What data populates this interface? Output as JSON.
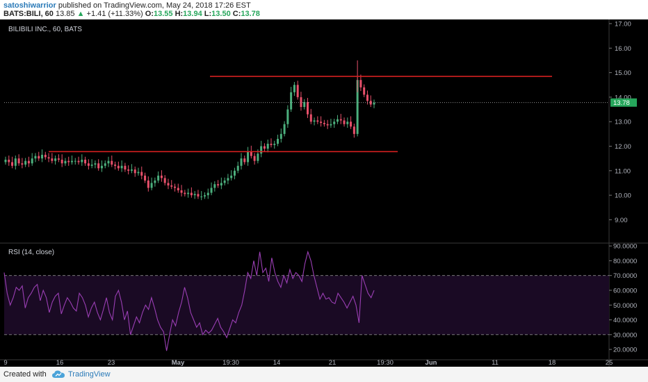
{
  "header": {
    "author": "satoshiwarrior",
    "published_text": "published on TradingView.com, May 24, 2018 17:26 EST",
    "symbol_interval": "BATS:BILI, 60",
    "last_price": "13.85",
    "change_arrow": "▲",
    "change_text": "+1.41 (+11.33%)",
    "open_label": "O:",
    "open_value": "13.55",
    "high_label": "H:",
    "high_value": "13.94",
    "low_label": "L:",
    "low_value": "13.50",
    "close_label": "C:",
    "close_value": "13.78"
  },
  "colors": {
    "background": "#000000",
    "up_candle": "#4caf7d",
    "down_candle": "#e8506b",
    "horizontal_line": "#d42020",
    "rsi_line": "#9b3fb5",
    "rsi_band": "#1a0a24",
    "price_marker": "#26a65b",
    "axis_text": "#b2b5be"
  },
  "footer": {
    "created_with": "Created with",
    "brand": "TradingView"
  },
  "chart_data": [
    {
      "type": "candlestick",
      "title": "BILIBILI INC., 60, BATS",
      "ylim": [
        8.4,
        17.1
      ],
      "y_ticks": [
        "17.00",
        "16.00",
        "15.00",
        "14.00",
        "13.00",
        "12.00",
        "11.00",
        "10.00",
        "9.00"
      ],
      "x_ticks": [
        "9",
        "16",
        "23",
        "May",
        "19:30",
        "14",
        "21",
        "19:30",
        "Jun",
        "11",
        "18",
        "25"
      ],
      "last_price_label": "13.78",
      "horizontal_lines": [
        {
          "value": 14.85,
          "from": "May 5",
          "to": "Jun 18"
        },
        {
          "value": 11.78,
          "from": "Apr 14",
          "to": "Jun 7"
        }
      ],
      "close_series": [
        11.45,
        11.35,
        11.2,
        11.5,
        11.3,
        11.25,
        11.4,
        11.3,
        11.5,
        11.6,
        11.5,
        11.65,
        11.55,
        11.5,
        11.4,
        11.5,
        11.45,
        11.3,
        11.4,
        11.35,
        11.4,
        11.4,
        11.35,
        11.45,
        11.3,
        11.2,
        11.25,
        11.3,
        11.1,
        11.2,
        11.3,
        11.4,
        11.25,
        11.2,
        11.1,
        11.2,
        11.05,
        11.0,
        11.05,
        10.9,
        10.95,
        10.8,
        10.6,
        10.3,
        10.5,
        10.6,
        10.8,
        10.7,
        10.5,
        10.4,
        10.35,
        10.3,
        10.2,
        10.1,
        10.05,
        10.1,
        10.0,
        10.05,
        9.95,
        9.95,
        10.0,
        10.1,
        10.3,
        10.45,
        10.4,
        10.5,
        10.6,
        10.7,
        10.8,
        11.0,
        11.2,
        11.5,
        11.35,
        11.8,
        11.6,
        11.4,
        11.7,
        12.0,
        11.9,
        12.1,
        12.05,
        12.1,
        12.3,
        12.5,
        12.9,
        13.5,
        14.2,
        14.5,
        14.0,
        13.6,
        13.8,
        13.3,
        13.0,
        13.05,
        13.0,
        12.95,
        12.9,
        12.85,
        12.9,
        13.0,
        13.1,
        13.05,
        12.9,
        13.0,
        12.8,
        12.5,
        14.7,
        14.4,
        14.1,
        13.85,
        13.7,
        13.78
      ],
      "rsi": {
        "name": "RSI (14, close)",
        "ylim": [
          13,
          91
        ],
        "y_ticks": [
          "90.0000",
          "80.0000",
          "70.0000",
          "60.0000",
          "50.0000",
          "40.0000",
          "30.0000",
          "20.0000"
        ],
        "upper_band": 70,
        "lower_band": 30,
        "values": [
          72,
          58,
          50,
          55,
          62,
          60,
          63,
          48,
          55,
          58,
          62,
          64,
          53,
          60,
          55,
          45,
          52,
          56,
          58,
          44,
          50,
          55,
          52,
          48,
          46,
          58,
          55,
          50,
          42,
          48,
          52,
          45,
          40,
          47,
          55,
          45,
          40,
          56,
          60,
          52,
          40,
          46,
          30,
          36,
          42,
          38,
          45,
          50,
          47,
          55,
          48,
          40,
          35,
          32,
          19,
          30,
          40,
          36,
          45,
          52,
          62,
          55,
          45,
          40,
          35,
          38,
          30,
          33,
          31,
          33,
          37,
          41,
          35,
          32,
          28,
          34,
          40,
          38,
          45,
          50,
          60,
          72,
          68,
          80,
          70,
          86,
          72,
          75,
          66,
          82,
          72,
          66,
          62,
          70,
          65,
          74,
          68,
          72,
          70,
          66,
          78,
          86,
          80,
          70,
          62,
          54,
          58,
          54,
          55,
          52,
          51,
          58,
          55,
          52,
          48,
          52,
          56,
          50,
          38,
          70,
          64,
          58,
          55,
          60
        ]
      }
    }
  ]
}
